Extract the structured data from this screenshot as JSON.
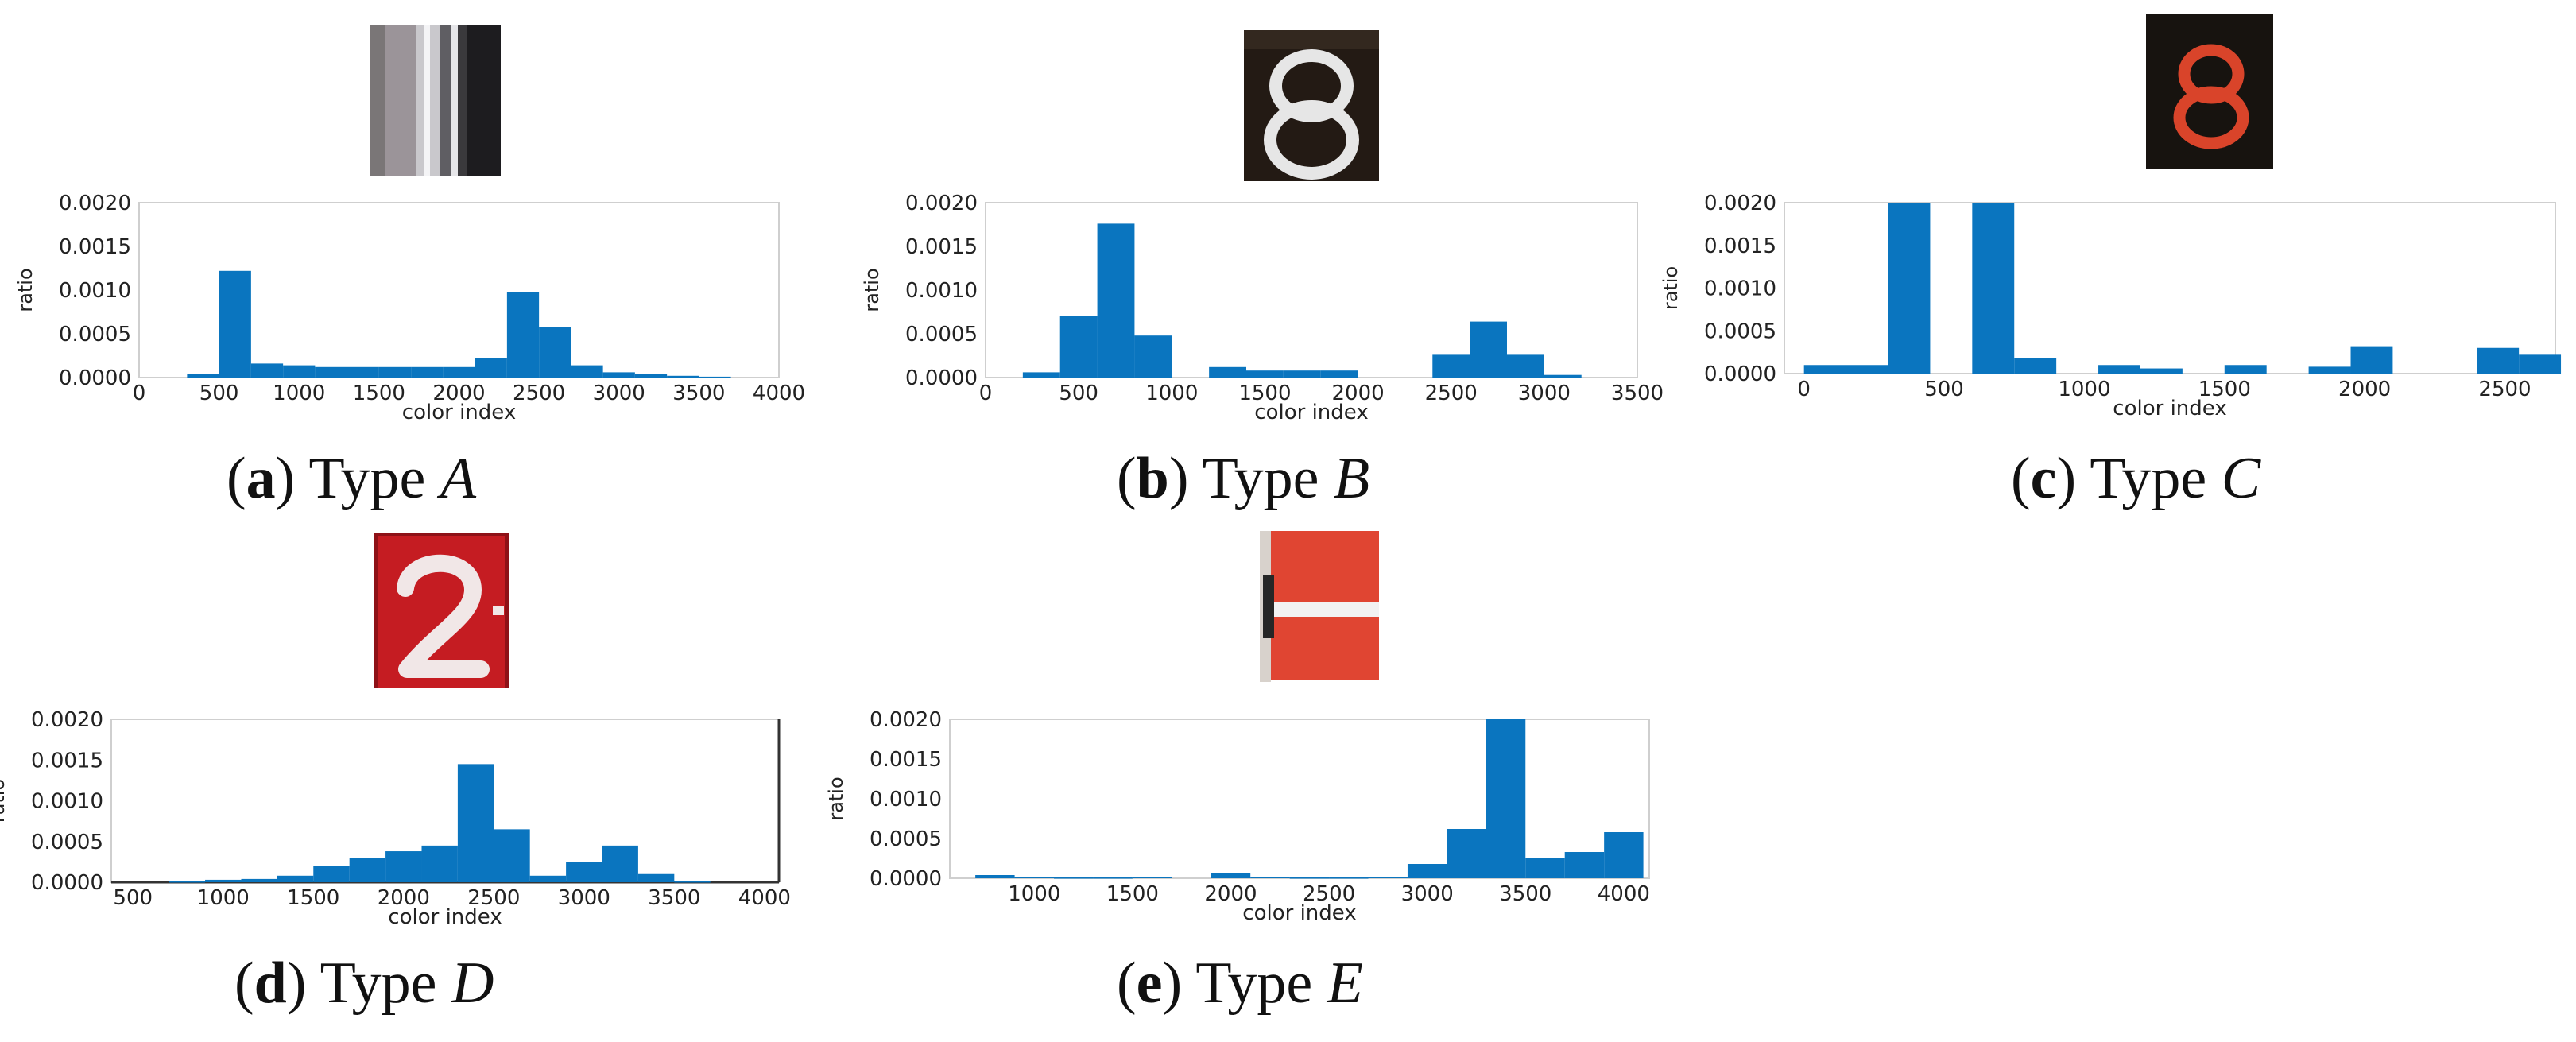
{
  "figure": {
    "bar_color": "#0a75bf",
    "panels": [
      {
        "id": "a",
        "letter": "a",
        "type_word": "Type",
        "type_letter": "A",
        "thumb": "gray-stripes-thumbnail"
      },
      {
        "id": "b",
        "letter": "b",
        "type_word": "Type",
        "type_letter": "B",
        "thumb": "white-eight-on-black-thumbnail"
      },
      {
        "id": "c",
        "letter": "c",
        "type_word": "Type",
        "type_letter": "C",
        "thumb": "orange-eight-on-black-thumbnail"
      },
      {
        "id": "d",
        "letter": "d",
        "type_word": "Type",
        "type_letter": "D",
        "thumb": "white-two-on-red-thumbnail"
      },
      {
        "id": "e",
        "letter": "e",
        "type_word": "Type",
        "type_letter": "E",
        "thumb": "red-white-panel-thumbnail"
      }
    ]
  },
  "chart_data": [
    {
      "panel": "a",
      "type": "bar",
      "x": [
        300,
        500,
        700,
        900,
        1100,
        1300,
        1500,
        1700,
        1900,
        2100,
        2300,
        2500,
        2700,
        2900,
        3100,
        3300,
        3500,
        3700
      ],
      "values": [
        4e-05,
        0.00122,
        0.00016,
        0.00014,
        0.00012,
        0.00012,
        0.00012,
        0.00012,
        0.00012,
        0.00022,
        0.00098,
        0.00058,
        0.00014,
        6e-05,
        4e-05,
        2e-05,
        1e-05,
        0.0
      ],
      "xlabel": "color index",
      "ylabel": "ratio",
      "ylim": [
        0,
        0.002
      ],
      "yticks": [
        "0.0000",
        "0.0005",
        "0.0010",
        "0.0015",
        "0.0020"
      ],
      "xticks": [
        "0",
        "500",
        "1000",
        "1500",
        "2000",
        "2500",
        "3000",
        "3500",
        "4000"
      ]
    },
    {
      "panel": "b",
      "type": "bar",
      "x": [
        200,
        400,
        600,
        800,
        1000,
        1200,
        1400,
        1600,
        1800,
        2000,
        2200,
        2400,
        2600,
        2800,
        3000,
        3200
      ],
      "values": [
        6e-05,
        0.0007,
        0.00176,
        0.00048,
        0.0,
        0.00012,
        8e-05,
        8e-05,
        8e-05,
        0.0,
        0.0,
        0.00026,
        0.00064,
        0.00026,
        3e-05,
        0.0
      ],
      "xlabel": "color index",
      "ylabel": "ratio",
      "ylim": [
        0,
        0.002
      ],
      "yticks": [
        "0.0000",
        "0.0005",
        "0.0010",
        "0.0015",
        "0.0020"
      ],
      "xticks": [
        "0",
        "500",
        "1000",
        "1500",
        "2000",
        "2500",
        "3000",
        "3500"
      ]
    },
    {
      "panel": "c",
      "type": "bar",
      "x": [
        0,
        150,
        300,
        450,
        600,
        750,
        900,
        1050,
        1200,
        1350,
        1500,
        1650,
        1800,
        1950,
        2100,
        2250,
        2400,
        2550
      ],
      "values": [
        0.0001,
        0.0001,
        0.002,
        0.0,
        0.002,
        0.00018,
        0.0,
        0.0001,
        6e-05,
        0.0,
        0.0001,
        0.0,
        8e-05,
        0.00032,
        0.0,
        0.0,
        0.0003,
        0.00022
      ],
      "xlabel": "color index",
      "ylabel": "ratio",
      "ylim": [
        0,
        0.002
      ],
      "yticks": [
        "0.0000",
        "0.0005",
        "0.0010",
        "0.0015",
        "0.0020"
      ],
      "xticks": [
        "0",
        "500",
        "1000",
        "1500",
        "2000",
        "2500"
      ]
    },
    {
      "panel": "d",
      "type": "bar",
      "x": [
        500,
        700,
        900,
        1100,
        1300,
        1500,
        1700,
        1900,
        2100,
        2300,
        2500,
        2700,
        2900,
        3100,
        3300,
        3500,
        3700
      ],
      "values": [
        0.0,
        1e-05,
        3e-05,
        4e-05,
        8e-05,
        0.0002,
        0.0003,
        0.00038,
        0.00045,
        0.00145,
        0.00065,
        8e-05,
        0.00025,
        0.00045,
        0.0001,
        1e-05,
        0.0
      ],
      "xlabel": "color index",
      "ylabel": "ratio",
      "ylim": [
        0,
        0.002
      ],
      "yticks": [
        "0.0000",
        "0.0005",
        "0.0010",
        "0.0015",
        "0.0020"
      ],
      "xticks": [
        "500",
        "1000",
        "1500",
        "2000",
        "2500",
        "3000",
        "3500",
        "4000"
      ]
    },
    {
      "panel": "e",
      "type": "bar",
      "x": [
        700,
        900,
        1100,
        1300,
        1500,
        1700,
        1900,
        2100,
        2300,
        2500,
        2700,
        2900,
        3100,
        3300,
        3500,
        3700,
        3900
      ],
      "values": [
        4e-05,
        2e-05,
        1e-05,
        1e-05,
        2e-05,
        0.0,
        6e-05,
        2e-05,
        1e-05,
        1e-05,
        2e-05,
        0.00018,
        0.00062,
        0.002,
        0.00026,
        0.00033,
        0.00058
      ],
      "xlabel": "color index",
      "ylabel": "ratio",
      "ylim": [
        0,
        0.002
      ],
      "yticks": [
        "0.0000",
        "0.0005",
        "0.0010",
        "0.0015",
        "0.0020"
      ],
      "xticks": [
        "1000",
        "1500",
        "2000",
        "2500",
        "3000",
        "3500",
        "4000"
      ]
    }
  ]
}
